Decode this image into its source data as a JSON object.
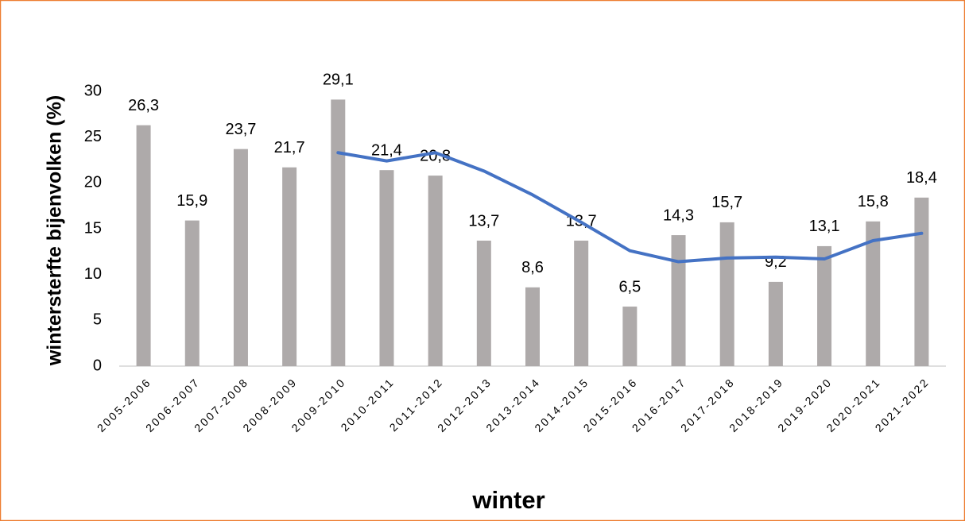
{
  "chart_data": {
    "type": "bar",
    "y_label": "wintersterfte bijenvolken (%)",
    "x_label": "winter",
    "categories": [
      "2005-2006",
      "2006-2007",
      "2007-2008",
      "2008-2009",
      "2009-2010",
      "2010-2011",
      "2011-2012",
      "2012-2013",
      "2013-2014",
      "2014-2015",
      "2015-2016",
      "2016-2017",
      "2017-2018",
      "2018-2019",
      "2019-2020",
      "2020-2021",
      "2021-2022"
    ],
    "series": [
      {
        "type": "bar",
        "color": "#aeaaaa",
        "values": [
          26.3,
          15.9,
          23.7,
          21.7,
          29.1,
          21.4,
          20.8,
          13.7,
          8.6,
          13.7,
          6.5,
          14.3,
          15.7,
          9.2,
          13.1,
          15.8,
          18.4
        ],
        "value_labels": [
          "26,3",
          "15,9",
          "23,7",
          "21,7",
          "29,1",
          "21,4",
          "20,8",
          "13,7",
          "8,6",
          "13,7",
          "6,5",
          "14,3",
          "15,7",
          "9,2",
          "13,1",
          "15,8",
          "18,4"
        ]
      },
      {
        "type": "line",
        "color": "#4472c4",
        "values": [
          null,
          null,
          null,
          null,
          23.3,
          22.4,
          23.3,
          21.3,
          18.7,
          15.7,
          12.6,
          11.4,
          11.8,
          11.9,
          11.7,
          13.7,
          14.5
        ]
      }
    ],
    "ylim": [
      0,
      30
    ],
    "yticks": [
      0,
      5,
      10,
      15,
      20,
      25,
      30
    ],
    "grid": false
  }
}
